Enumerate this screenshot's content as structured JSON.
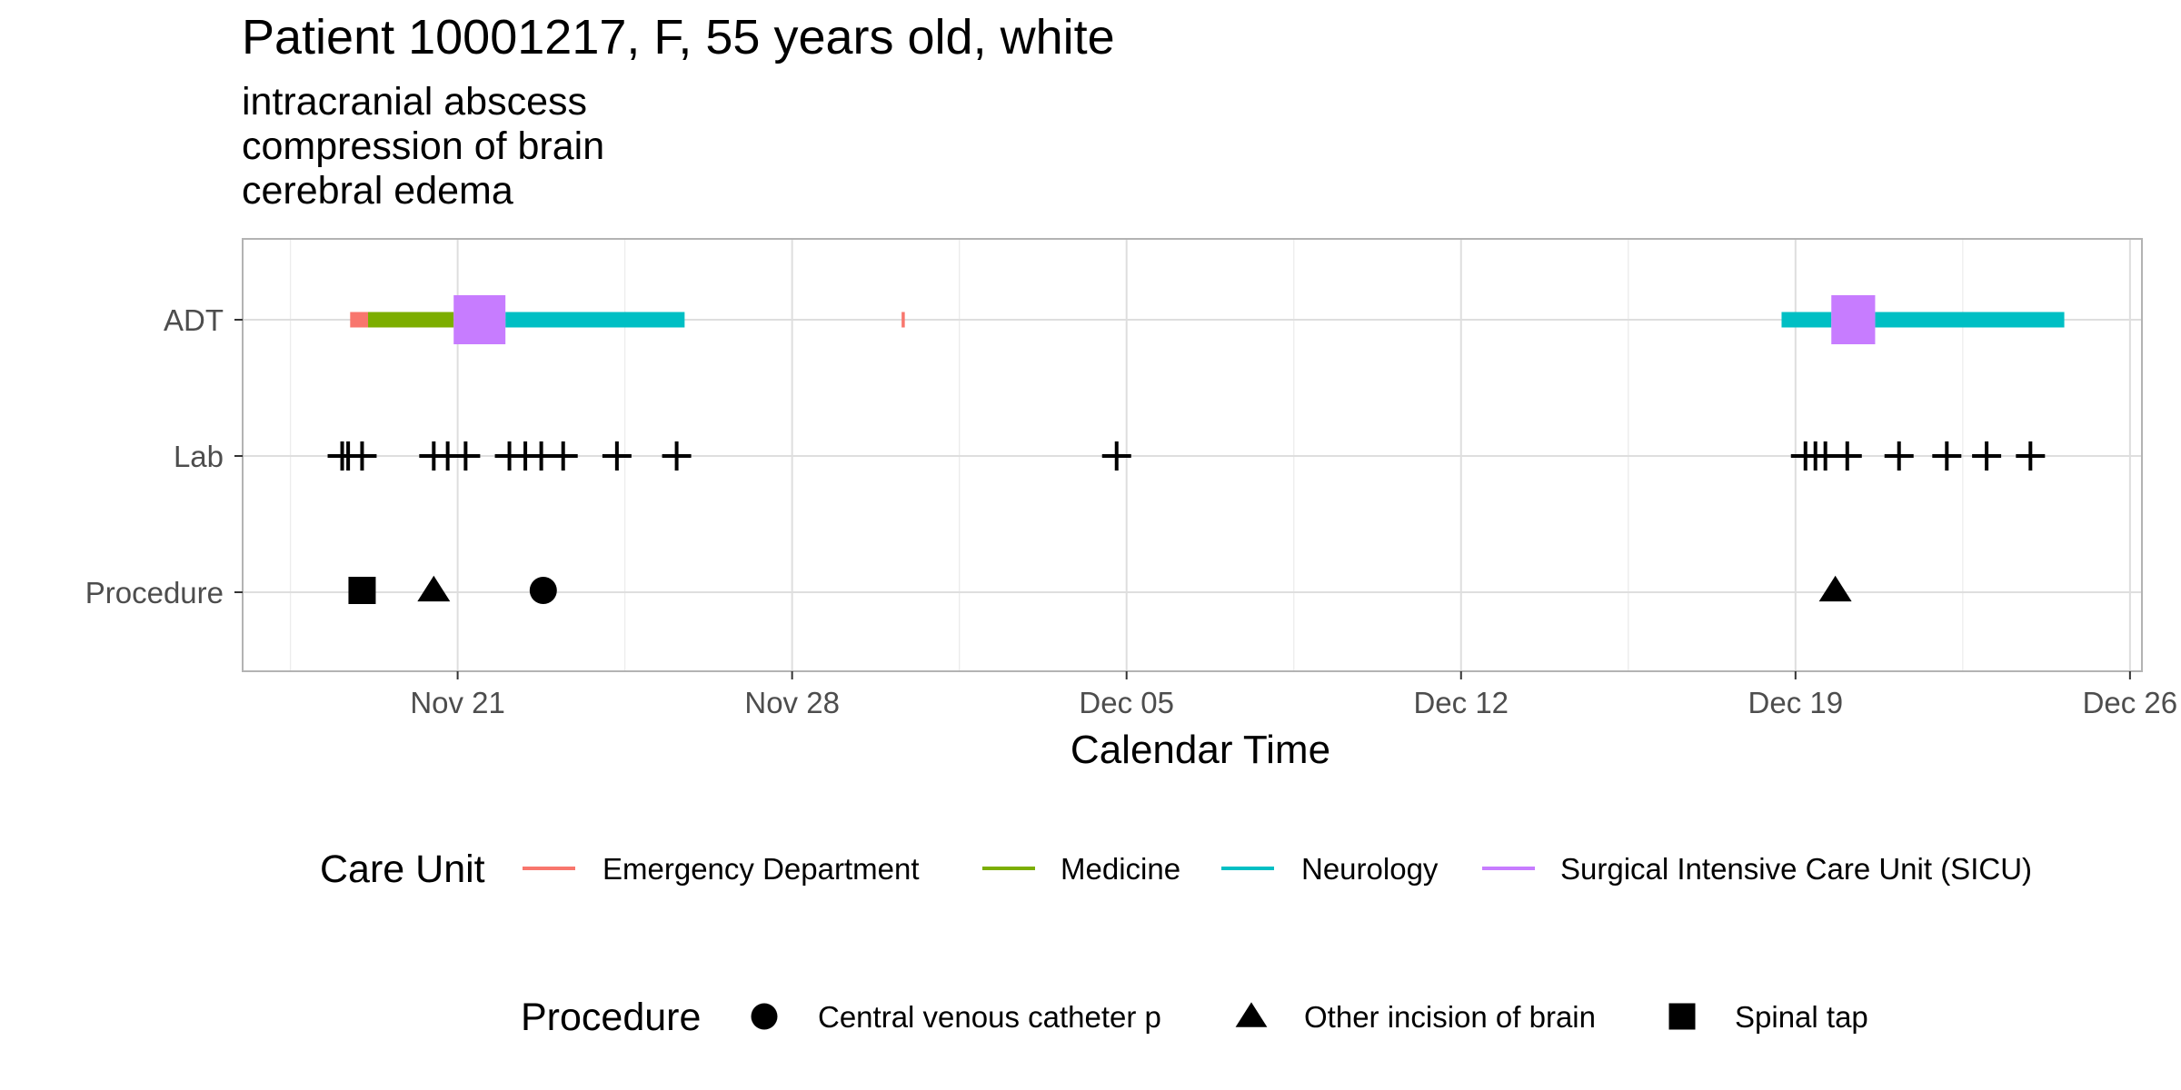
{
  "chart_data": {
    "type": "timeline",
    "title": "Patient 10001217, F, 55 years old, white",
    "subtitle_lines": [
      "intracranial abscess",
      "compression of brain",
      "cerebral edema"
    ],
    "xlabel": "Calendar Time",
    "ylabel": "",
    "x_ticks": [
      "Nov 21",
      "Nov 28",
      "Dec 05",
      "Dec 12",
      "Dec 19",
      "Dec 26"
    ],
    "x_tick_dates": [
      "2023-11-21",
      "2023-11-28",
      "2023-12-05",
      "2023-12-12",
      "2023-12-19",
      "2023-12-26"
    ],
    "x_range": [
      "2023-11-16 12:00",
      "2023-12-26 06:00"
    ],
    "y_categories": [
      "ADT",
      "Lab",
      "Procedure"
    ],
    "grid": true,
    "care_unit_legend_title": "Care Unit",
    "procedure_legend_title": "Procedure",
    "care_units": [
      {
        "name": "Emergency Department",
        "color": "#F8766D"
      },
      {
        "name": "Medicine",
        "color": "#7CAE00"
      },
      {
        "name": "Neurology",
        "color": "#00BFC4"
      },
      {
        "name": "Surgical Intensive Care Unit (SICU)",
        "color": "#C77CFF"
      }
    ],
    "adt_segments": [
      {
        "unit": "Emergency Department",
        "start": "2023-11-18 18:00",
        "end": "2023-11-19 03:00"
      },
      {
        "unit": "Medicine",
        "start": "2023-11-19 03:00",
        "end": "2023-11-20 22:00"
      },
      {
        "unit": "Surgical Intensive Care Unit (SICU)",
        "start": "2023-11-20 22:00",
        "end": "2023-11-22 00:00"
      },
      {
        "unit": "Neurology",
        "start": "2023-11-22 00:00",
        "end": "2023-11-25 18:00"
      },
      {
        "unit": "Emergency Department",
        "start": "2023-11-30 07:00",
        "end": "2023-11-30 07:30"
      },
      {
        "unit": "Neurology",
        "start": "2023-12-18 17:00",
        "end": "2023-12-19 18:00"
      },
      {
        "unit": "Surgical Intensive Care Unit (SICU)",
        "start": "2023-12-19 18:00",
        "end": "2023-12-20 16:00"
      },
      {
        "unit": "Neurology",
        "start": "2023-12-20 16:00",
        "end": "2023-12-24 15:00"
      }
    ],
    "lab_events": [
      "2023-11-18 14:00",
      "2023-11-18 17:00",
      "2023-11-19 00:00",
      "2023-11-20 12:00",
      "2023-11-20 19:00",
      "2023-11-21 04:00",
      "2023-11-22 02:00",
      "2023-11-22 10:00",
      "2023-11-22 18:00",
      "2023-11-23 05:00",
      "2023-11-24 08:00",
      "2023-11-25 14:00",
      "2023-12-04 19:00",
      "2023-12-19 05:00",
      "2023-12-19 10:00",
      "2023-12-19 15:00",
      "2023-12-20 02:00",
      "2023-12-21 04:00",
      "2023-12-22 04:00",
      "2023-12-23 00:00",
      "2023-12-23 22:00"
    ],
    "procedure_types": [
      {
        "name": "Central venous catheter p",
        "shape": "circle"
      },
      {
        "name": "Other incision of brain",
        "shape": "triangle"
      },
      {
        "name": "Spinal tap",
        "shape": "square"
      }
    ],
    "procedure_events": [
      {
        "type": "Spinal tap",
        "date": "2023-11-19 00:00"
      },
      {
        "type": "Other incision of brain",
        "date": "2023-11-20 12:00"
      },
      {
        "type": "Central venous catheter p",
        "date": "2023-11-22 19:00"
      },
      {
        "type": "Other incision of brain",
        "date": "2023-12-19 20:00"
      }
    ]
  }
}
